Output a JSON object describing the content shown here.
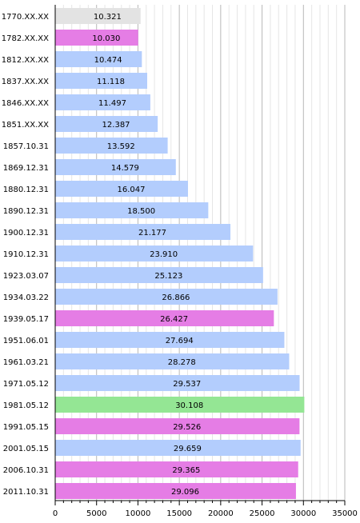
{
  "chart_data": {
    "type": "bar",
    "orientation": "horizontal",
    "categories": [
      "1770.XX.XX",
      "1782.XX.XX",
      "1812.XX.XX",
      "1837.XX.XX",
      "1846.XX.XX",
      "1851.XX.XX",
      "1857.10.31",
      "1869.12.31",
      "1880.12.31",
      "1890.12.31",
      "1900.12.31",
      "1910.12.31",
      "1923.03.07",
      "1934.03.22",
      "1939.05.17",
      "1951.06.01",
      "1961.03.21",
      "1971.05.12",
      "1981.05.12",
      "1991.05.15",
      "2001.05.15",
      "2006.10.31",
      "2011.10.31"
    ],
    "values": [
      10321,
      10030,
      10474,
      11118,
      11497,
      12387,
      13592,
      14579,
      16047,
      18500,
      21177,
      23910,
      25123,
      26866,
      26427,
      27694,
      28278,
      29537,
      30108,
      29526,
      29659,
      29365,
      29096
    ],
    "value_labels": [
      "10.321",
      "10.030",
      "10.474",
      "11.118",
      "11.497",
      "12.387",
      "13.592",
      "14.579",
      "16.047",
      "18.500",
      "21.177",
      "23.910",
      "25.123",
      "26.866",
      "26.427",
      "27.694",
      "28.278",
      "29.537",
      "30.108",
      "29.526",
      "29.659",
      "29.365",
      "29.096"
    ],
    "bar_colors": [
      "#e3e3e3",
      "#e57de5",
      "#b3cdfd",
      "#b3cdfd",
      "#b3cdfd",
      "#b3cdfd",
      "#b3cdfd",
      "#b3cdfd",
      "#b3cdfd",
      "#b3cdfd",
      "#b3cdfd",
      "#b3cdfd",
      "#b3cdfd",
      "#b3cdfd",
      "#e57de5",
      "#b3cdfd",
      "#b3cdfd",
      "#b3cdfd",
      "#94e694",
      "#e57de5",
      "#b3cdfd",
      "#e57de5",
      "#e57de5"
    ],
    "xlim": [
      0,
      35000
    ],
    "xticks": [
      0,
      5000,
      10000,
      15000,
      20000,
      25000,
      30000,
      35000
    ],
    "xtick_labels": [
      "0",
      "5000",
      "10000",
      "15000",
      "20000",
      "25000",
      "30000",
      "35000"
    ],
    "minor_grid_step": 1000,
    "grid": true,
    "title": "",
    "xlabel": "",
    "ylabel": ""
  }
}
